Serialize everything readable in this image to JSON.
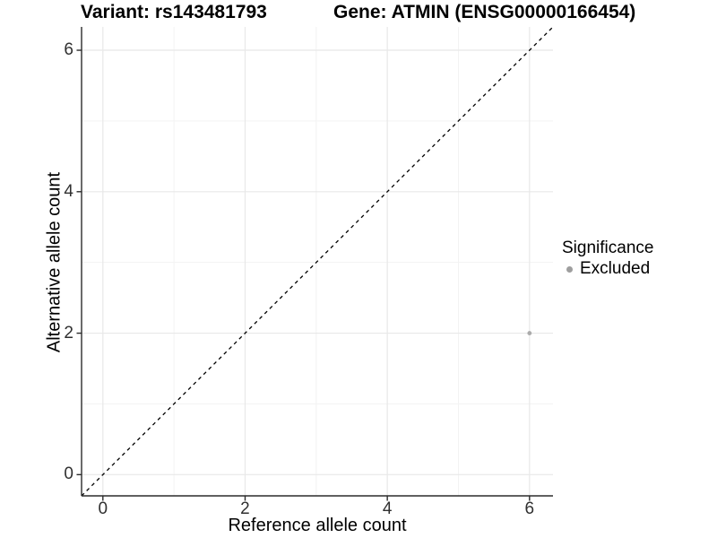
{
  "chart_data": {
    "type": "scatter",
    "title_left": "Variant: rs143481793",
    "title_right": "Gene: ATMIN (ENSG00000166454)",
    "xlabel": "Reference allele count",
    "ylabel": "Alternative allele count",
    "xlim": [
      -0.3,
      6.33
    ],
    "ylim": [
      -0.3,
      6.33
    ],
    "x_major_ticks": [
      0,
      2,
      4,
      6
    ],
    "y_major_ticks": [
      0,
      2,
      4,
      6
    ],
    "x_minor_ticks": [
      1,
      3,
      5
    ],
    "y_minor_ticks": [
      1,
      3,
      5
    ],
    "grid": true,
    "series": [
      {
        "name": "Excluded",
        "color": "#ababab",
        "points": [
          {
            "x": 6,
            "y": 2
          }
        ]
      }
    ],
    "reference_line": {
      "type": "identity",
      "equation": "y = x",
      "style": "dashed",
      "color": "#000000"
    },
    "legend": {
      "title": "Significance",
      "position": "right",
      "items": [
        {
          "label": "Excluded",
          "color": "#9e9e9e"
        }
      ]
    },
    "style": {
      "axis_color": "#2b2b2b",
      "grid_major_color": "#e8e8e8",
      "grid_minor_color": "#f3f3f3",
      "tick_label_color": "#303030",
      "background": "#ffffff"
    }
  }
}
